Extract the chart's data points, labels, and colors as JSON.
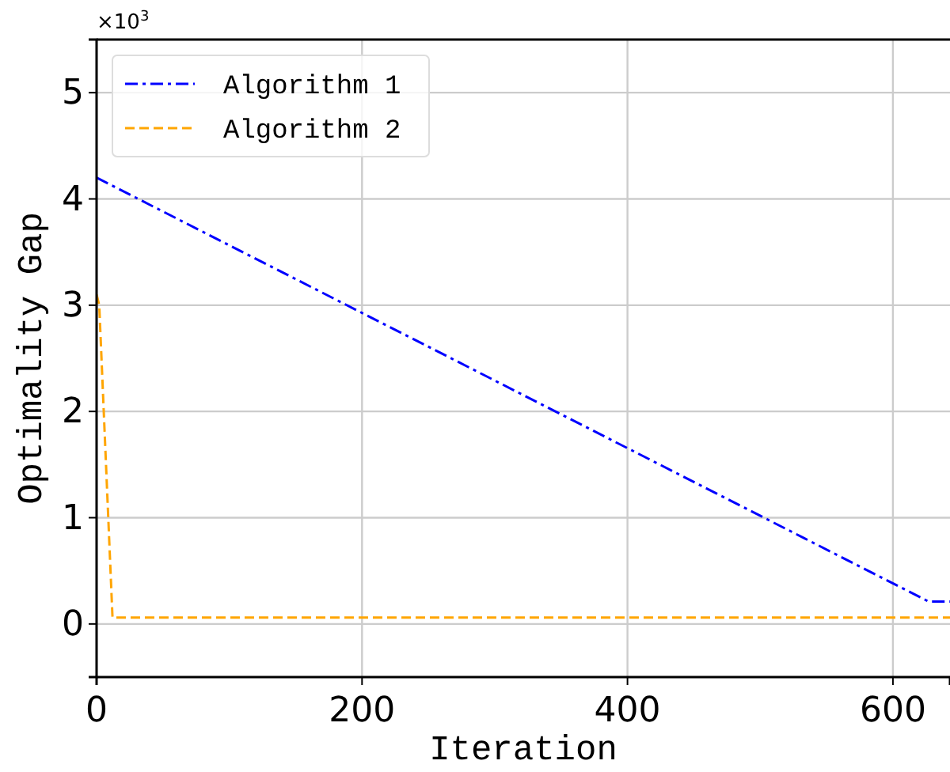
{
  "chart_data": {
    "type": "line",
    "xlabel": "Iteration",
    "ylabel": "Optimality Gap",
    "annotations": [
      "×10$^{3}$"
    ],
    "xlim": [
      0,
      643
    ],
    "xticks": [
      0,
      200,
      400,
      600
    ],
    "ylim": [
      -0.5,
      5.5
    ],
    "yticks": [
      0,
      1,
      2,
      3,
      4,
      5
    ],
    "grid": true,
    "legend": "top left",
    "marker": "none",
    "series": [
      {
        "name": "Algorithm 1",
        "color": "#0000ff",
        "line_style": "dashdot",
        "x": [
          0,
          627,
          643
        ],
        "values": [
          4.2,
          0.21,
          0.21
        ]
      },
      {
        "name": "Algorithm 2",
        "color": "#ffa500",
        "line_style": "dashed",
        "x": [
          0,
          2,
          12,
          643
        ],
        "values": [
          3.1,
          3.0,
          0.06,
          0.06
        ]
      }
    ]
  }
}
